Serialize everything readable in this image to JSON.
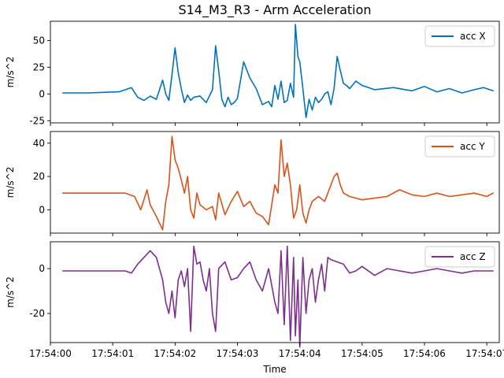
{
  "chart_data": {
    "type": "line",
    "title": "S14_M3_R3 - Arm Acceleration",
    "xlabel": "Time",
    "xlim": [
      "17:54:00.00",
      "17:54:07.20"
    ],
    "x_ticks": [
      "17:54:00",
      "17:54:01",
      "17:54:02",
      "17:54:03",
      "17:54:04",
      "17:54:05",
      "17:54:06",
      "17:54:07"
    ],
    "grid": false,
    "legend_position": "top-right",
    "panels": [
      {
        "ylabel": "m/s^2",
        "ylim": [
          -27,
          68
        ],
        "y_ticks": [
          -25,
          0,
          25,
          50
        ],
        "series": [
          {
            "name": "acc X",
            "color": "#0072bd",
            "x": [
              "17:54:00.20",
              "17:54:00.60",
              "17:54:01.10",
              "17:54:01.30",
              "17:54:01.40",
              "17:54:01.50",
              "17:54:01.60",
              "17:54:01.70",
              "17:54:01.80",
              "17:54:01.85",
              "17:54:01.90",
              "17:54:01.95",
              "17:54:02.00",
              "17:54:02.05",
              "17:54:02.10",
              "17:54:02.15",
              "17:54:02.20",
              "17:54:02.25",
              "17:54:02.30",
              "17:54:02.40",
              "17:54:02.50",
              "17:54:02.60",
              "17:54:02.65",
              "17:54:02.70",
              "17:54:02.75",
              "17:54:02.80",
              "17:54:02.85",
              "17:54:02.90",
              "17:54:02.95",
              "17:54:03.00",
              "17:54:03.10",
              "17:54:03.20",
              "17:54:03.30",
              "17:54:03.40",
              "17:54:03.50",
              "17:54:03.55",
              "17:54:03.60",
              "17:54:03.65",
              "17:54:03.70",
              "17:54:03.75",
              "17:54:03.80",
              "17:54:03.85",
              "17:54:03.90",
              "17:54:03.93",
              "17:54:03.97",
              "17:54:04.00",
              "17:54:04.05",
              "17:54:04.10",
              "17:54:04.15",
              "17:54:04.20",
              "17:54:04.25",
              "17:54:04.30",
              "17:54:04.35",
              "17:54:04.40",
              "17:54:04.45",
              "17:54:04.50",
              "17:54:04.55",
              "17:54:04.60",
              "17:54:04.65",
              "17:54:04.70",
              "17:54:04.75",
              "17:54:04.80",
              "17:54:04.90",
              "17:54:05.00",
              "17:54:05.20",
              "17:54:05.50",
              "17:54:05.80",
              "17:54:06.00",
              "17:54:06.20",
              "17:54:06.40",
              "17:54:06.60",
              "17:54:06.80",
              "17:54:06.95",
              "17:54:07.10"
            ],
            "values": [
              1,
              1,
              2,
              6,
              -3,
              -6,
              -2,
              -5,
              13,
              0,
              -6,
              18,
              43,
              20,
              5,
              -8,
              -1,
              -6,
              -3,
              -2,
              -8,
              4,
              45,
              22,
              -5,
              -12,
              -3,
              -10,
              -8,
              -4,
              30,
              15,
              5,
              -10,
              -7,
              -12,
              8,
              -5,
              12,
              -8,
              -6,
              10,
              -3,
              65,
              35,
              30,
              5,
              -22,
              -5,
              -15,
              -3,
              -8,
              -5,
              0,
              2,
              -10,
              5,
              35,
              22,
              10,
              8,
              5,
              12,
              8,
              4,
              6,
              3,
              7,
              2,
              5,
              1,
              4,
              6,
              3
            ]
          }
        ]
      },
      {
        "ylabel": "m/s^2",
        "ylim": [
          -14,
          47
        ],
        "y_ticks": [
          0,
          20,
          40
        ],
        "series": [
          {
            "name": "acc Y",
            "color": "#d95319",
            "x": [
              "17:54:00.20",
              "17:54:01.20",
              "17:54:01.35",
              "17:54:01.45",
              "17:54:01.55",
              "17:54:01.60",
              "17:54:01.70",
              "17:54:01.80",
              "17:54:01.85",
              "17:54:01.90",
              "17:54:01.95",
              "17:54:02.00",
              "17:54:02.05",
              "17:54:02.10",
              "17:54:02.15",
              "17:54:02.20",
              "17:54:02.25",
              "17:54:02.30",
              "17:54:02.35",
              "17:54:02.40",
              "17:54:02.50",
              "17:54:02.60",
              "17:54:02.65",
              "17:54:02.70",
              "17:54:02.80",
              "17:54:02.90",
              "17:54:03.00",
              "17:54:03.10",
              "17:54:03.20",
              "17:54:03.30",
              "17:54:03.40",
              "17:54:03.50",
              "17:54:03.60",
              "17:54:03.65",
              "17:54:03.70",
              "17:54:03.75",
              "17:54:03.80",
              "17:54:03.85",
              "17:54:03.90",
              "17:54:03.95",
              "17:54:04.00",
              "17:54:04.05",
              "17:54:04.10",
              "17:54:04.15",
              "17:54:04.20",
              "17:54:04.30",
              "17:54:04.40",
              "17:54:04.50",
              "17:54:04.55",
              "17:54:04.60",
              "17:54:04.65",
              "17:54:04.70",
              "17:54:04.80",
              "17:54:05.00",
              "17:54:05.20",
              "17:54:05.40",
              "17:54:05.60",
              "17:54:05.80",
              "17:54:06.00",
              "17:54:06.20",
              "17:54:06.40",
              "17:54:06.60",
              "17:54:06.80",
              "17:54:07.00",
              "17:54:07.10"
            ],
            "values": [
              10,
              10,
              8,
              0,
              12,
              3,
              -4,
              -12,
              5,
              15,
              44,
              30,
              25,
              18,
              10,
              20,
              0,
              -5,
              10,
              3,
              0,
              2,
              -6,
              10,
              -3,
              5,
              11,
              2,
              5,
              -2,
              -4,
              -9,
              15,
              10,
              42,
              20,
              28,
              15,
              -5,
              0,
              15,
              -2,
              -8,
              0,
              5,
              8,
              5,
              15,
              20,
              22,
              15,
              10,
              8,
              6,
              7,
              8,
              12,
              9,
              8,
              10,
              8,
              9,
              10,
              8,
              10
            ]
          }
        ]
      },
      {
        "ylabel": "m/s^2",
        "ylim": [
          -33,
          12
        ],
        "y_ticks": [
          -20,
          0
        ],
        "series": [
          {
            "name": "acc Z",
            "color": "#7e2f8e",
            "x": [
              "17:54:00.20",
              "17:54:01.20",
              "17:54:01.30",
              "17:54:01.40",
              "17:54:01.50",
              "17:54:01.60",
              "17:54:01.70",
              "17:54:01.80",
              "17:54:01.85",
              "17:54:01.90",
              "17:54:01.95",
              "17:54:02.00",
              "17:54:02.05",
              "17:54:02.10",
              "17:54:02.15",
              "17:54:02.20",
              "17:54:02.25",
              "17:54:02.30",
              "17:54:02.35",
              "17:54:02.40",
              "17:54:02.45",
              "17:54:02.50",
              "17:54:02.55",
              "17:54:02.60",
              "17:54:02.65",
              "17:54:02.70",
              "17:54:02.80",
              "17:54:02.90",
              "17:54:03.00",
              "17:54:03.10",
              "17:54:03.20",
              "17:54:03.30",
              "17:54:03.40",
              "17:54:03.50",
              "17:54:03.60",
              "17:54:03.65",
              "17:54:03.70",
              "17:54:03.75",
              "17:54:03.80",
              "17:54:03.85",
              "17:54:03.90",
              "17:54:03.93",
              "17:54:03.97",
              "17:54:04.00",
              "17:54:04.05",
              "17:54:04.10",
              "17:54:04.15",
              "17:54:04.20",
              "17:54:04.25",
              "17:54:04.30",
              "17:54:04.35",
              "17:54:04.40",
              "17:54:04.45",
              "17:54:04.50",
              "17:54:04.60",
              "17:54:04.70",
              "17:54:04.80",
              "17:54:04.90",
              "17:54:05.00",
              "17:54:05.20",
              "17:54:05.40",
              "17:54:05.60",
              "17:54:05.80",
              "17:54:06.00",
              "17:54:06.20",
              "17:54:06.40",
              "17:54:06.60",
              "17:54:06.80",
              "17:54:07.00",
              "17:54:07.10"
            ],
            "values": [
              -1,
              -1,
              -2,
              2,
              5,
              8,
              5,
              -5,
              -15,
              -20,
              -10,
              -22,
              -5,
              -1,
              -8,
              0,
              -28,
              10,
              2,
              3,
              -5,
              -10,
              0,
              -20,
              -28,
              0,
              3,
              -5,
              -4,
              0,
              3,
              -5,
              -10,
              0,
              -15,
              -20,
              8,
              -25,
              10,
              -32,
              5,
              -30,
              -5,
              -35,
              5,
              -20,
              -5,
              0,
              -15,
              -5,
              2,
              -10,
              5,
              4,
              3,
              2,
              -2,
              -1,
              1,
              -3,
              0,
              -1,
              -2,
              -1,
              0,
              -1,
              -2,
              -1,
              -1,
              -1
            ]
          }
        ]
      }
    ]
  }
}
